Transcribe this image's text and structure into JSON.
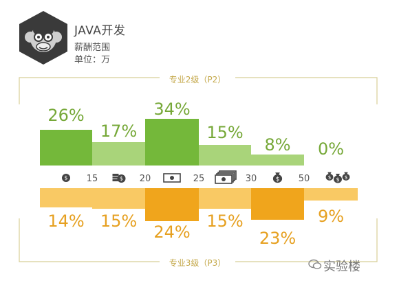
{
  "header": {
    "title": "JAVA开发",
    "subtitle": "薪酬范围",
    "unit": "单位：万"
  },
  "watermark": "实验楼",
  "colors": {
    "p2_dark": "#74b83a",
    "p2_light": "#a9d47a",
    "p3_dark": "#f0a51c",
    "p3_light": "#f9c964",
    "frame": "#d8cf96",
    "icon": "#444444"
  },
  "chart_data": {
    "type": "bar",
    "categories": [
      "<15",
      "15-20",
      "20-25",
      "25-30",
      "30-50",
      ">50"
    ],
    "x_ticks": [
      "15",
      "20",
      "25",
      "30",
      "50"
    ],
    "category_icons": [
      "coin-icon",
      "coins-icon",
      "banknote-icon",
      "banknote-stack-icon",
      "money-bag-icon",
      "money-bags-icon"
    ],
    "series": [
      {
        "name": "专业2级（P2）",
        "values": [
          26,
          17,
          34,
          15,
          8,
          0
        ],
        "labels": [
          "26%",
          "17%",
          "34%",
          "15%",
          "8%",
          "0%"
        ]
      },
      {
        "name": "专业3级（P3）",
        "values": [
          14,
          15,
          24,
          15,
          23,
          9
        ],
        "labels": [
          "14%",
          "15%",
          "24%",
          "15%",
          "23%",
          "9%"
        ]
      }
    ]
  }
}
